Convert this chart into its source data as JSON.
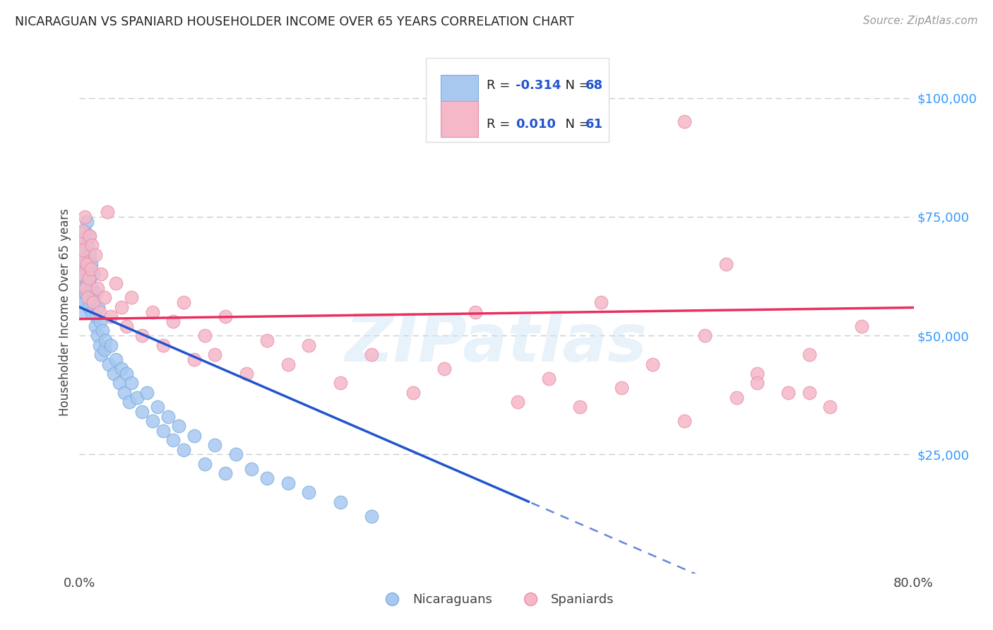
{
  "title": "NICARAGUAN VS SPANIARD HOUSEHOLDER INCOME OVER 65 YEARS CORRELATION CHART",
  "source": "Source: ZipAtlas.com",
  "ylabel": "Householder Income Over 65 years",
  "xlim": [
    0.0,
    0.8
  ],
  "ylim": [
    0,
    110000
  ],
  "blue_R": "-0.314",
  "blue_N": "68",
  "pink_R": "0.010",
  "pink_N": "61",
  "blue_color": "#a8c8f0",
  "pink_color": "#f5b8c8",
  "blue_edge_color": "#7aaede",
  "pink_edge_color": "#e890aa",
  "blue_line_color": "#2255cc",
  "pink_line_color": "#e83060",
  "watermark": "ZIPatlas",
  "background_color": "#ffffff",
  "grid_color": "#cccccc",
  "nicaraguan_x": [
    0.001,
    0.001,
    0.002,
    0.002,
    0.003,
    0.003,
    0.004,
    0.004,
    0.005,
    0.005,
    0.006,
    0.006,
    0.007,
    0.007,
    0.008,
    0.008,
    0.009,
    0.009,
    0.01,
    0.01,
    0.011,
    0.011,
    0.012,
    0.012,
    0.013,
    0.014,
    0.015,
    0.015,
    0.016,
    0.017,
    0.018,
    0.019,
    0.02,
    0.021,
    0.022,
    0.024,
    0.025,
    0.028,
    0.03,
    0.033,
    0.035,
    0.038,
    0.04,
    0.043,
    0.045,
    0.048,
    0.05,
    0.055,
    0.06,
    0.065,
    0.07,
    0.075,
    0.08,
    0.085,
    0.09,
    0.095,
    0.1,
    0.11,
    0.12,
    0.13,
    0.14,
    0.15,
    0.165,
    0.18,
    0.2,
    0.22,
    0.25,
    0.28
  ],
  "nicaraguan_y": [
    65000,
    58000,
    62000,
    55000,
    70000,
    60000,
    68000,
    57000,
    72000,
    63000,
    66000,
    59000,
    74000,
    61000,
    69000,
    64000,
    71000,
    56000,
    67000,
    62000,
    65000,
    58000,
    60000,
    55000,
    63000,
    57000,
    59000,
    52000,
    54000,
    50000,
    56000,
    48000,
    53000,
    46000,
    51000,
    47000,
    49000,
    44000,
    48000,
    42000,
    45000,
    40000,
    43000,
    38000,
    42000,
    36000,
    40000,
    37000,
    34000,
    38000,
    32000,
    35000,
    30000,
    33000,
    28000,
    31000,
    26000,
    29000,
    23000,
    27000,
    21000,
    25000,
    22000,
    20000,
    19000,
    17000,
    15000,
    12000
  ],
  "spaniard_x": [
    0.001,
    0.002,
    0.003,
    0.003,
    0.004,
    0.005,
    0.006,
    0.007,
    0.008,
    0.009,
    0.01,
    0.011,
    0.012,
    0.013,
    0.015,
    0.017,
    0.019,
    0.021,
    0.024,
    0.027,
    0.03,
    0.035,
    0.04,
    0.045,
    0.05,
    0.06,
    0.07,
    0.08,
    0.09,
    0.1,
    0.11,
    0.12,
    0.13,
    0.14,
    0.16,
    0.18,
    0.2,
    0.22,
    0.25,
    0.28,
    0.32,
    0.35,
    0.38,
    0.42,
    0.45,
    0.48,
    0.5,
    0.52,
    0.55,
    0.58,
    0.6,
    0.63,
    0.65,
    0.68,
    0.7,
    0.72,
    0.75,
    0.58,
    0.62,
    0.65,
    0.7
  ],
  "spaniard_y": [
    63000,
    70000,
    66000,
    72000,
    68000,
    75000,
    60000,
    65000,
    58000,
    62000,
    71000,
    64000,
    69000,
    57000,
    67000,
    60000,
    55000,
    63000,
    58000,
    76000,
    54000,
    61000,
    56000,
    52000,
    58000,
    50000,
    55000,
    48000,
    53000,
    57000,
    45000,
    50000,
    46000,
    54000,
    42000,
    49000,
    44000,
    48000,
    40000,
    46000,
    38000,
    43000,
    55000,
    36000,
    41000,
    35000,
    57000,
    39000,
    44000,
    32000,
    50000,
    37000,
    42000,
    38000,
    46000,
    35000,
    52000,
    95000,
    65000,
    40000,
    38000
  ],
  "blue_trend_x0": 0.0,
  "blue_trend_y0": 56000,
  "blue_trend_slope": -95000,
  "pink_trend_x0": 0.0,
  "pink_trend_y0": 53500,
  "pink_trend_slope": 3000
}
